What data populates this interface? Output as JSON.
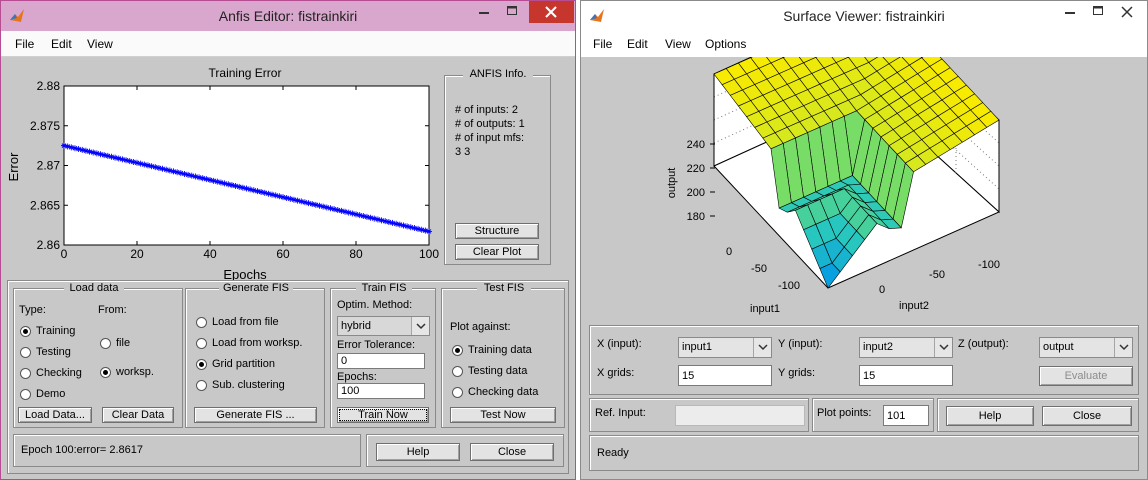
{
  "anfis": {
    "title": "Anfis Editor: fistrainkiri",
    "menu": [
      "File",
      "Edit",
      "View"
    ],
    "chart_label": "Training Error",
    "info": {
      "heading": "ANFIS Info.",
      "inputs_line": "# of inputs: 2",
      "outputs_line": "# of outputs: 1",
      "mfs_line": "# of input mfs:",
      "mfs_values": "3  3",
      "structure_button": "Structure",
      "clear_plot_button": "Clear Plot"
    },
    "load": {
      "heading": "Load data",
      "type_label": "Type:",
      "from_label": "From:",
      "types": [
        "Training",
        "Testing",
        "Checking",
        "Demo"
      ],
      "type_selected": "Training",
      "sources": [
        "file",
        "worksp."
      ],
      "source_selected": "worksp.",
      "load_button": "Load Data...",
      "clear_button": "Clear Data"
    },
    "generate": {
      "heading": "Generate FIS",
      "options": [
        "Load from file",
        "Load from worksp.",
        "Grid partition",
        "Sub. clustering"
      ],
      "selected": "Grid partition",
      "button": "Generate FIS ..."
    },
    "train": {
      "heading": "Train FIS",
      "method_label": "Optim. Method:",
      "method_value": "hybrid",
      "tolerance_label": "Error Tolerance:",
      "tolerance_value": "0",
      "epochs_label": "Epochs:",
      "epochs_value": "100",
      "button": "Train Now"
    },
    "test": {
      "heading": "Test FIS",
      "against_label": "Plot against:",
      "options": [
        "Training data",
        "Testing data",
        "Checking data"
      ],
      "selected": "Training data",
      "button": "Test Now"
    },
    "status": "Epoch 100:error= 2.8617",
    "help_button": "Help",
    "close_button": "Close"
  },
  "chart_data": {
    "type": "line",
    "title": "",
    "xlabel": "Epochs",
    "ylabel": "Error",
    "xlim": [
      0,
      100
    ],
    "ylim": [
      2.86,
      2.88
    ],
    "xticks": [
      0,
      20,
      40,
      60,
      80,
      100
    ],
    "yticks": [
      "2.86",
      "2.865",
      "2.87",
      "2.875",
      "2.88"
    ],
    "series": [
      {
        "color": "#0000ff",
        "marker": "*",
        "start": {
          "x": 0,
          "y": 2.8725
        },
        "end": {
          "x": 100,
          "y": 2.8617
        }
      }
    ]
  },
  "surface": {
    "title": "Surface Viewer: fistrainkiri",
    "menu": [
      "File",
      "Edit",
      "View",
      "Options"
    ],
    "plot": {
      "zlabel": "output",
      "xlabel": "input1",
      "ylabel": "input2",
      "zticks": [
        "240",
        "220",
        "200",
        "180"
      ],
      "xticks": [
        "0",
        "-50",
        "-100"
      ],
      "yticks": [
        "0",
        "-50",
        "-100"
      ]
    },
    "x_label": "X (input):",
    "x_value": "input1",
    "y_label": "Y (input):",
    "y_value": "input2",
    "z_label": "Z (output):",
    "z_value": "output",
    "xgrids_label": "X grids:",
    "xgrids_value": "15",
    "ygrids_label": "Y grids:",
    "ygrids_value": "15",
    "evaluate_button": "Evaluate",
    "ref_label": "Ref. Input:",
    "ref_value": "",
    "plotpoints_label": "Plot points:",
    "plotpoints_value": "101",
    "help_button": "Help",
    "close_button": "Close",
    "status": "Ready"
  },
  "colors": {
    "anfis_titlebar": "#d9a7cd",
    "close_button": "#c7362c",
    "plot_line": "#0000ff"
  }
}
